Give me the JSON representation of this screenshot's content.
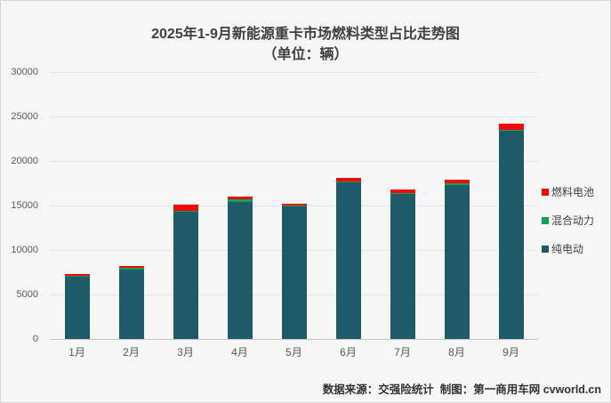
{
  "title": "2025年1-9月新能源重卡市场燃料类型占比走势图",
  "subtitle": "（单位：辆）",
  "footer": "数据来源：交强险统计  制图：第一商用车网 cvworld.cn",
  "colors": {
    "fuel_cell": "#F70808",
    "hybrid": "#0CA551",
    "electric": "#1F5A69",
    "background": "#F6F6F6",
    "gridline": "#E3E3E3",
    "axis_line": "#C4C4C4",
    "title_text": "#404040",
    "axis_text": "#595959",
    "footer_text": "#333333"
  },
  "legend": [
    {
      "label": "燃料电池",
      "color_key": "fuel_cell"
    },
    {
      "label": "混合动力",
      "color_key": "hybrid"
    },
    {
      "label": "纯电动",
      "color_key": "electric"
    }
  ],
  "chart_data": {
    "type": "bar",
    "stacked": true,
    "title": "2025年1-9月新能源重卡市场燃料类型占比走势图（单位：辆）",
    "categories": [
      "1月",
      "2月",
      "3月",
      "4月",
      "5月",
      "6月",
      "7月",
      "8月",
      "9月"
    ],
    "series": [
      {
        "name": "纯电动",
        "color_key": "electric",
        "values": [
          7050,
          7850,
          14350,
          15450,
          14950,
          17650,
          16300,
          17350,
          23450
        ]
      },
      {
        "name": "混合动力",
        "color_key": "hybrid",
        "values": [
          30,
          150,
          50,
          250,
          100,
          50,
          100,
          200,
          50
        ]
      },
      {
        "name": "燃料电池",
        "color_key": "fuel_cell",
        "values": [
          250,
          250,
          750,
          280,
          200,
          450,
          430,
          400,
          720
        ]
      }
    ],
    "totals": [
      7330,
      8250,
      15150,
      15980,
      15250,
      18150,
      16830,
      17950,
      24220
    ],
    "ylim": [
      0,
      30000
    ],
    "yticks": [
      0,
      5000,
      10000,
      15000,
      20000,
      25000,
      30000
    ],
    "ytick_labels": [
      "0",
      "5000",
      "10000",
      "15000",
      "20000",
      "25000",
      "30000"
    ],
    "grid": true,
    "legend_position": "right",
    "xlabel": "",
    "ylabel": ""
  }
}
